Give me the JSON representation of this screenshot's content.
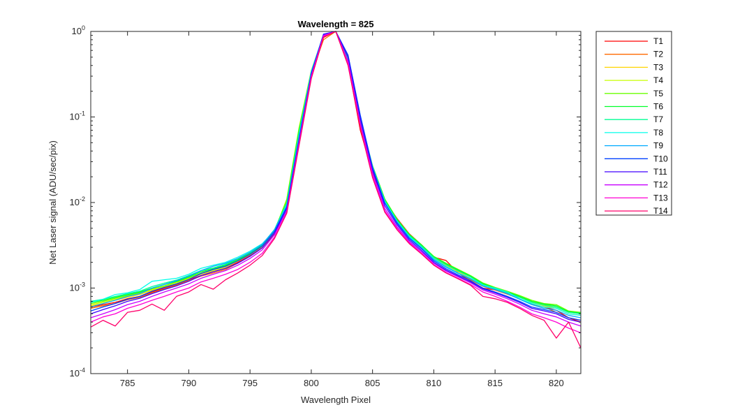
{
  "chart_data": {
    "type": "line",
    "title": "Wavelength = 825",
    "xlabel": "Wavelength Pixel",
    "ylabel": "Net Laser signal  (ADU/sec/pix)",
    "xlim": [
      782,
      822
    ],
    "ylim": [
      0.0001,
      1
    ],
    "yscale": "log",
    "x_ticks": [
      785,
      790,
      795,
      800,
      805,
      810,
      815,
      820
    ],
    "y_ticks": [
      {
        "value": 0.0001,
        "base": "10",
        "exp": "-4"
      },
      {
        "value": 0.001,
        "base": "10",
        "exp": "-3"
      },
      {
        "value": 0.01,
        "base": "10",
        "exp": "-2"
      },
      {
        "value": 0.1,
        "base": "10",
        "exp": "-1"
      },
      {
        "value": 1,
        "base": "10",
        "exp": "0"
      }
    ],
    "grid": false,
    "legend_position": "outside-right",
    "x": [
      782,
      783,
      784,
      785,
      786,
      787,
      788,
      789,
      790,
      791,
      792,
      793,
      794,
      795,
      796,
      797,
      798,
      799,
      800,
      801,
      802,
      803,
      804,
      805,
      806,
      807,
      808,
      809,
      810,
      811,
      812,
      813,
      814,
      815,
      816,
      817,
      818,
      819,
      820,
      821,
      822
    ],
    "series": [
      {
        "name": "T1",
        "color": "#ff0000",
        "values": [
          0.0006,
          0.00064,
          0.00068,
          0.00075,
          0.0008,
          0.0009,
          0.001,
          0.0011,
          0.00125,
          0.0014,
          0.00155,
          0.0017,
          0.002,
          0.0024,
          0.003,
          0.0042,
          0.009,
          0.055,
          0.3,
          0.85,
          1.0,
          0.42,
          0.07,
          0.022,
          0.0105,
          0.0065,
          0.0043,
          0.0032,
          0.0023,
          0.0021,
          0.0015,
          0.0012,
          0.001,
          0.00095,
          0.00085,
          0.00075,
          0.00065,
          0.0006,
          0.00055,
          0.00045,
          0.0004
        ]
      },
      {
        "name": "T2",
        "color": "#ff6a00",
        "values": [
          0.00058,
          0.00062,
          0.00066,
          0.00073,
          0.00078,
          0.00088,
          0.00098,
          0.00108,
          0.00122,
          0.00138,
          0.0015,
          0.00165,
          0.00195,
          0.00235,
          0.00295,
          0.0043,
          0.0095,
          0.06,
          0.32,
          0.8,
          1.0,
          0.43,
          0.075,
          0.023,
          0.01,
          0.006,
          0.004,
          0.003,
          0.0022,
          0.0018,
          0.0015,
          0.00125,
          0.00105,
          0.00095,
          0.00085,
          0.00075,
          0.00065,
          0.0006,
          0.00052,
          0.00045,
          0.00042
        ]
      },
      {
        "name": "T3",
        "color": "#ffd400",
        "values": [
          0.00062,
          0.00066,
          0.00072,
          0.00078,
          0.00084,
          0.00094,
          0.00102,
          0.00112,
          0.00128,
          0.00145,
          0.00158,
          0.00175,
          0.00205,
          0.00245,
          0.00305,
          0.0045,
          0.0105,
          0.07,
          0.34,
          0.88,
          1.0,
          0.46,
          0.085,
          0.025,
          0.0105,
          0.0062,
          0.0041,
          0.0031,
          0.00225,
          0.00185,
          0.00155,
          0.0013,
          0.0011,
          0.00098,
          0.00088,
          0.00078,
          0.00068,
          0.00062,
          0.00058,
          0.0005,
          0.00048
        ]
      },
      {
        "name": "T4",
        "color": "#c8ff00",
        "values": [
          0.00064,
          0.00068,
          0.00074,
          0.0008,
          0.00086,
          0.00096,
          0.00104,
          0.00115,
          0.0013,
          0.00148,
          0.0016,
          0.00178,
          0.00208,
          0.00248,
          0.0031,
          0.0046,
          0.011,
          0.075,
          0.35,
          0.9,
          1.0,
          0.48,
          0.09,
          0.026,
          0.0108,
          0.0063,
          0.0042,
          0.00315,
          0.0023,
          0.0019,
          0.0016,
          0.00135,
          0.00112,
          0.001,
          0.0009,
          0.0008,
          0.0007,
          0.00064,
          0.0006,
          0.00052,
          0.0005
        ]
      },
      {
        "name": "T5",
        "color": "#6aff00",
        "values": [
          0.00066,
          0.0007,
          0.00076,
          0.00082,
          0.00088,
          0.00098,
          0.00106,
          0.00118,
          0.00132,
          0.0015,
          0.00165,
          0.00182,
          0.00212,
          0.00252,
          0.00315,
          0.0047,
          0.0108,
          0.072,
          0.34,
          0.89,
          1.0,
          0.5,
          0.095,
          0.027,
          0.011,
          0.0064,
          0.00425,
          0.0032,
          0.00235,
          0.00195,
          0.00165,
          0.0014,
          0.00115,
          0.00102,
          0.00092,
          0.00082,
          0.00072,
          0.00066,
          0.00064,
          0.00054,
          0.00052
        ]
      },
      {
        "name": "T6",
        "color": "#00ff2a",
        "values": [
          0.00068,
          0.00072,
          0.00078,
          0.00084,
          0.0009,
          0.001,
          0.0011,
          0.0012,
          0.00135,
          0.00155,
          0.00168,
          0.00185,
          0.00215,
          0.00255,
          0.00318,
          0.0048,
          0.01,
          0.068,
          0.33,
          0.88,
          1.0,
          0.49,
          0.093,
          0.0265,
          0.0108,
          0.0063,
          0.0042,
          0.00318,
          0.00232,
          0.00192,
          0.00162,
          0.00138,
          0.00113,
          0.001,
          0.0009,
          0.0008,
          0.0007,
          0.00065,
          0.00062,
          0.00053,
          0.00051
        ]
      },
      {
        "name": "T7",
        "color": "#00ff95",
        "values": [
          0.0007,
          0.00074,
          0.0008,
          0.00086,
          0.00092,
          0.00104,
          0.00114,
          0.00124,
          0.0014,
          0.0016,
          0.00172,
          0.0019,
          0.0022,
          0.0026,
          0.00322,
          0.00485,
          0.0098,
          0.065,
          0.34,
          0.9,
          1.0,
          0.47,
          0.09,
          0.0255,
          0.0105,
          0.00615,
          0.0041,
          0.0031,
          0.00228,
          0.00188,
          0.00158,
          0.00135,
          0.0011,
          0.00098,
          0.00088,
          0.00078,
          0.00068,
          0.00063,
          0.0006,
          0.00052,
          0.0005
        ]
      },
      {
        "name": "T8",
        "color": "#00ffea",
        "values": [
          0.00068,
          0.00074,
          0.00084,
          0.00088,
          0.00096,
          0.0012,
          0.00125,
          0.0013,
          0.00145,
          0.0017,
          0.00185,
          0.002,
          0.0023,
          0.0027,
          0.0033,
          0.0047,
          0.0095,
          0.06,
          0.34,
          0.92,
          1.0,
          0.5,
          0.098,
          0.0265,
          0.0103,
          0.006,
          0.004,
          0.003,
          0.0022,
          0.0018,
          0.0015,
          0.0013,
          0.00108,
          0.001,
          0.0009,
          0.00075,
          0.00066,
          0.0006,
          0.00058,
          0.0005,
          0.00048
        ]
      },
      {
        "name": "T9",
        "color": "#00aaff",
        "values": [
          0.0006,
          0.00066,
          0.00072,
          0.0008,
          0.00086,
          0.001,
          0.0011,
          0.00122,
          0.00138,
          0.0016,
          0.0018,
          0.00195,
          0.00222,
          0.00262,
          0.00325,
          0.0048,
          0.0092,
          0.058,
          0.33,
          0.93,
          1.0,
          0.52,
          0.1,
          0.026,
          0.01,
          0.0059,
          0.0039,
          0.00295,
          0.00215,
          0.00175,
          0.00148,
          0.00128,
          0.00106,
          0.00096,
          0.00086,
          0.00074,
          0.00064,
          0.00058,
          0.00055,
          0.00048,
          0.00045
        ]
      },
      {
        "name": "T10",
        "color": "#0040ff",
        "values": [
          0.00054,
          0.0006,
          0.00066,
          0.00074,
          0.0008,
          0.00092,
          0.00102,
          0.00112,
          0.00126,
          0.00148,
          0.00165,
          0.0018,
          0.00208,
          0.00248,
          0.0031,
          0.0046,
          0.0088,
          0.055,
          0.32,
          0.93,
          1.0,
          0.53,
          0.105,
          0.0255,
          0.0098,
          0.00575,
          0.0038,
          0.00288,
          0.00208,
          0.00168,
          0.00142,
          0.00122,
          0.001,
          0.0009,
          0.0008,
          0.0007,
          0.0006,
          0.00056,
          0.00052,
          0.00045,
          0.00042
        ]
      },
      {
        "name": "T11",
        "color": "#4000ff",
        "values": [
          0.0005,
          0.00056,
          0.00062,
          0.0007,
          0.00076,
          0.00086,
          0.00096,
          0.00106,
          0.0012,
          0.0014,
          0.00155,
          0.0017,
          0.00195,
          0.00235,
          0.00295,
          0.0044,
          0.0085,
          0.053,
          0.31,
          0.92,
          1.0,
          0.5,
          0.095,
          0.024,
          0.0092,
          0.0055,
          0.00365,
          0.00275,
          0.002,
          0.00162,
          0.00138,
          0.00118,
          0.00098,
          0.00088,
          0.00078,
          0.00068,
          0.00058,
          0.00054,
          0.0005,
          0.00043,
          0.0004
        ]
      },
      {
        "name": "T12",
        "color": "#c800ff",
        "values": [
          0.00045,
          0.0005,
          0.00056,
          0.00064,
          0.0007,
          0.0008,
          0.0009,
          0.001,
          0.00112,
          0.0013,
          0.00145,
          0.0016,
          0.00185,
          0.00222,
          0.0028,
          0.0042,
          0.008,
          0.05,
          0.3,
          0.9,
          1.0,
          0.45,
          0.085,
          0.022,
          0.0085,
          0.0052,
          0.0035,
          0.00265,
          0.00195,
          0.00158,
          0.00135,
          0.00115,
          0.00095,
          0.00085,
          0.00075,
          0.00065,
          0.00055,
          0.0005,
          0.00046,
          0.0004,
          0.00036
        ]
      },
      {
        "name": "T13",
        "color": "#ff00d4",
        "values": [
          0.0004,
          0.00046,
          0.0005,
          0.00058,
          0.00064,
          0.00072,
          0.0008,
          0.0009,
          0.001,
          0.00118,
          0.0013,
          0.00145,
          0.00165,
          0.002,
          0.00255,
          0.00395,
          0.0076,
          0.048,
          0.29,
          0.88,
          1.0,
          0.42,
          0.078,
          0.0205,
          0.008,
          0.005,
          0.0034,
          0.00255,
          0.00188,
          0.00152,
          0.0013,
          0.0011,
          0.0009,
          0.0008,
          0.0007,
          0.0006,
          0.0005,
          0.00045,
          0.0004,
          0.00034,
          0.0003
        ]
      },
      {
        "name": "T14",
        "color": "#ff006a",
        "values": [
          0.00035,
          0.00042,
          0.00036,
          0.00052,
          0.00055,
          0.00065,
          0.00055,
          0.0008,
          0.0009,
          0.0011,
          0.00097,
          0.00125,
          0.0015,
          0.00185,
          0.0024,
          0.0038,
          0.0075,
          0.046,
          0.28,
          0.86,
          1.0,
          0.4,
          0.075,
          0.0195,
          0.0077,
          0.0048,
          0.0033,
          0.0025,
          0.00185,
          0.0015,
          0.00128,
          0.00108,
          0.0008,
          0.00075,
          0.00068,
          0.00058,
          0.00048,
          0.00042,
          0.00026,
          0.0004,
          0.0002
        ]
      }
    ]
  }
}
